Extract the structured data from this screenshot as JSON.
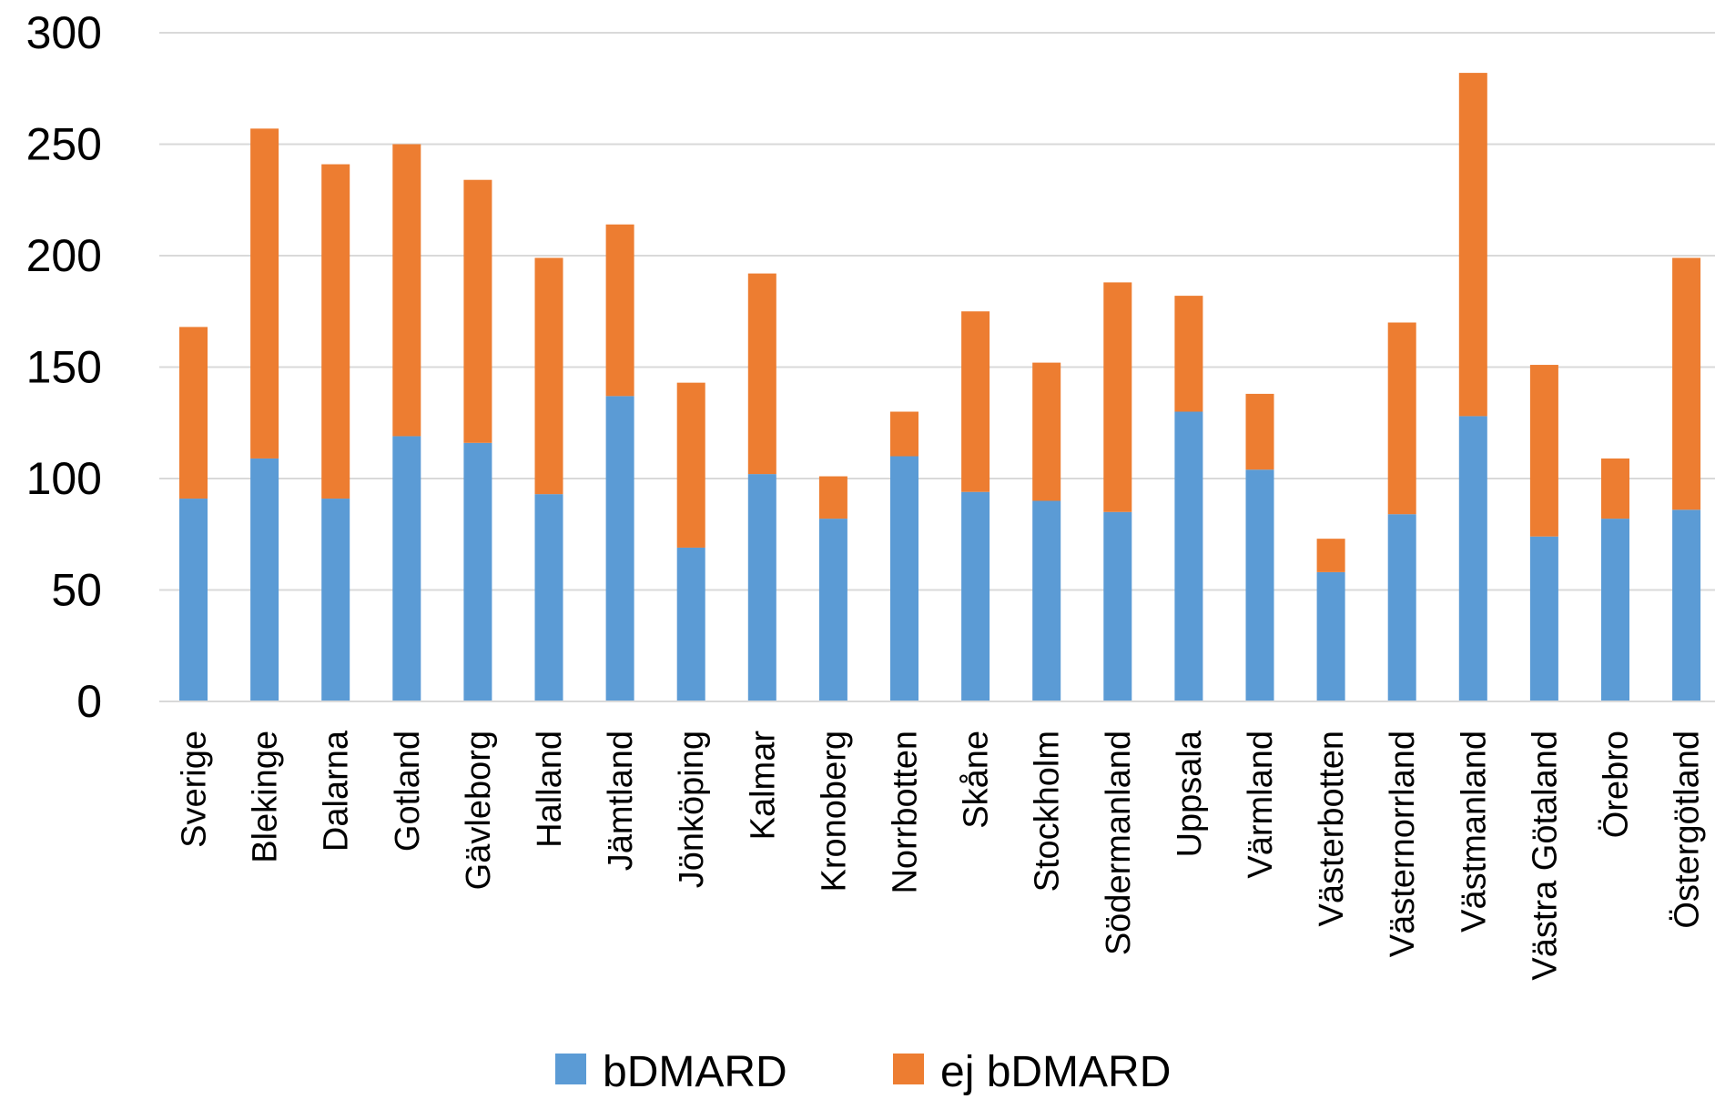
{
  "chart_data": {
    "type": "bar",
    "stacked": true,
    "categories": [
      "Sverige",
      "Blekinge",
      "Dalarna",
      "Gotland",
      "Gävleborg",
      "Halland",
      "Jämtland",
      "Jönköping",
      "Kalmar",
      "Kronoberg",
      "Norrbotten",
      "Skåne",
      "Stockholm",
      "Södermanland",
      "Uppsala",
      "Värmland",
      "Västerbotten",
      "Västernorrland",
      "Västmanland",
      "Västra Götaland",
      "Örebro",
      "Östergötland"
    ],
    "series": [
      {
        "name": "bDMARD",
        "color": "#5B9BD5",
        "values": [
          91,
          109,
          91,
          119,
          116,
          93,
          137,
          69,
          102,
          82,
          110,
          94,
          90,
          85,
          130,
          104,
          58,
          84,
          128,
          74,
          82,
          86
        ]
      },
      {
        "name": "ej bDMARD",
        "color": "#ED7D31",
        "values": [
          77,
          148,
          150,
          131,
          118,
          106,
          77,
          74,
          90,
          19,
          20,
          81,
          62,
          103,
          52,
          34,
          15,
          86,
          154,
          77,
          27,
          113
        ]
      }
    ],
    "ylim": [
      0,
      300
    ],
    "yticks": [
      "0",
      "50",
      "100",
      "150",
      "200",
      "250",
      "300"
    ],
    "ytick_values": [
      0,
      50,
      100,
      150,
      200,
      250,
      300
    ],
    "grid": true,
    "legend": "bottom",
    "title": "",
    "xlabel": "",
    "ylabel": ""
  }
}
